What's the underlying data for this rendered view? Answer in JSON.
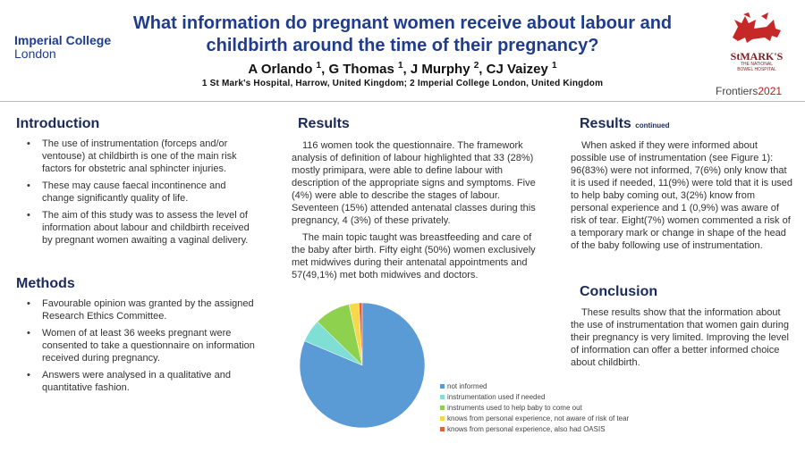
{
  "header": {
    "title_line1": "What information do pregnant women receive about labour and",
    "title_line2": "childbirth around the time of their pregnancy?",
    "authors": [
      {
        "name": "A Orlando",
        "sup": "1",
        "sep": ", "
      },
      {
        "name": "G Thomas",
        "sup": "1",
        "sep": ", "
      },
      {
        "name": "J Murphy",
        "sup": "2",
        "sep": ", "
      },
      {
        "name": "CJ Vaizey",
        "sup": "1",
        "sep": ""
      }
    ],
    "affiliations": "1 St Mark's Hospital, Harrow, United Kingdom; 2 Imperial College London, United Kingdom"
  },
  "logos": {
    "imperial_line1": "Imperial College",
    "imperial_line2": "London",
    "stmarks_name": "StMARK'S",
    "stmarks_sub1": "THE NATIONAL",
    "stmarks_sub2": "BOWEL HOSPITAL",
    "frontiers_word": "Frontiers",
    "frontiers_year": "2021"
  },
  "introduction": {
    "heading": "Introduction",
    "bullets": [
      "The use of instrumentation (forceps and/or ventouse) at childbirth is one of the main risk factors for obstetric anal sphincter injuries.",
      "These may cause faecal incontinence and change significantly quality of life.",
      "The aim of this study was to assess the level of information about labour and childbirth received by pregnant women awaiting a vaginal delivery."
    ]
  },
  "methods": {
    "heading": "Methods",
    "bullets": [
      "Favourable opinion was granted by the assigned Research Ethics Committee.",
      "Women of at least 36 weeks pregnant were consented to take a questionnaire on information received during pregnancy.",
      "Answers were analysed in a qualitative and quantitative fashion."
    ]
  },
  "results": {
    "heading": "Results",
    "p1": "116 women took the questionnaire. The framework analysis of definition of labour highlighted that 33 (28%) mostly primipara, were able to define labour with description of the appropriate signs and symptoms. Five (4%) were able to describe the stages of labour. Seventeen (15%) attended antenatal classes during this pregnancy, 4 (3%) of these privately.",
    "p2": "The main topic taught was breastfeeding and care of the baby after birth. Fifty eight (50%) women exclusively met midwives during their antenatal appointments and 57(49,1%) met both midwives and doctors."
  },
  "results_continued": {
    "heading": "Results",
    "heading_suffix": "continued",
    "p1": "When asked if they were informed about possible use of instrumentation (see Figure 1): 96(83%) were not informed, 7(6%) only know that it is used if needed, 11(9%) were told that it is used to help baby coming out, 3(2%) know from personal experience and 1 (0,9%) was aware of risk of tear. Eight(7%) women commented a risk of a temporary mark or change in shape of the head of the baby following use of instrumentation."
  },
  "conclusion": {
    "heading": "Conclusion",
    "p1": "These results show that the information about the use of instrumentation that women gain during their pregnancy is very limited. Improving the level of information can offer a better informed choice about childbirth."
  },
  "chart_data": {
    "type": "pie",
    "categories": [
      "not informed",
      "instrumentation used if needed",
      "instruments used to help baby to come out",
      "knows from personal experience, not aware of risk of tear",
      "knows from personal experience, also had OASIS"
    ],
    "values": [
      96,
      7,
      11,
      3,
      1
    ],
    "colors": [
      "#5b9bd5",
      "#7fdfd4",
      "#8dd14f",
      "#f7d84a",
      "#e06040"
    ],
    "legend": "right"
  }
}
